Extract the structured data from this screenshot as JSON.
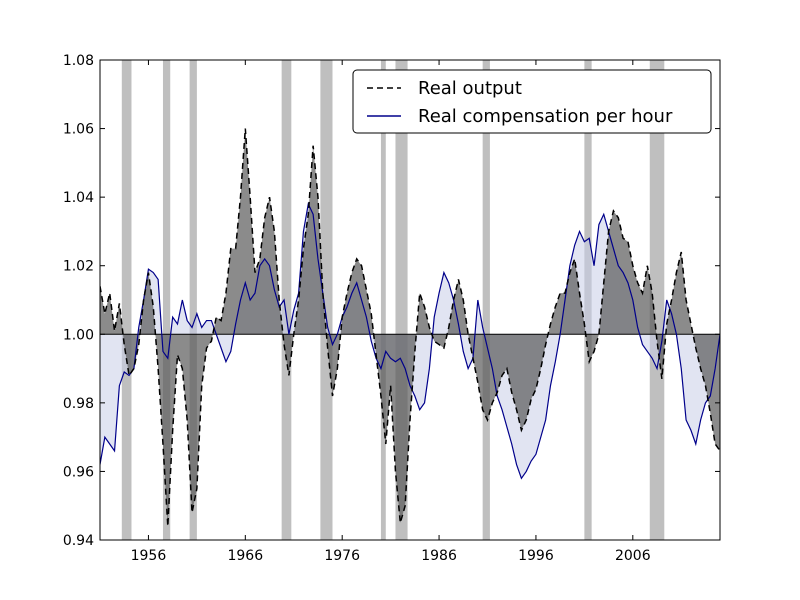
{
  "chart_data": {
    "type": "line",
    "title": "",
    "xlabel": "",
    "ylabel": "",
    "xlim": [
      1951.0,
      2015.0
    ],
    "ylim": [
      0.94,
      1.08
    ],
    "xticks": [
      1956,
      1966,
      1976,
      1986,
      1996,
      2006
    ],
    "xtick_labels": [
      "1956",
      "1966",
      "1976",
      "1986",
      "1996",
      "2006"
    ],
    "yticks": [
      0.94,
      0.96,
      0.98,
      1.0,
      1.02,
      1.04,
      1.06,
      1.08
    ],
    "ytick_labels": [
      "0.94",
      "0.96",
      "0.98",
      "1.00",
      "1.02",
      "1.04",
      "1.06",
      "1.08"
    ],
    "baseline": 1.0,
    "grid": false,
    "legend_position": "top-right",
    "recessions": [
      [
        1953.25,
        1954.25
      ],
      [
        1957.5,
        1958.25
      ],
      [
        1960.25,
        1961.0
      ],
      [
        1969.75,
        1970.75
      ],
      [
        1973.75,
        1975.0
      ],
      [
        1980.0,
        1980.5
      ],
      [
        1981.5,
        1982.75
      ],
      [
        1990.5,
        1991.25
      ],
      [
        2001.0,
        2001.75
      ],
      [
        2007.75,
        2009.25
      ]
    ],
    "colors": {
      "recession": "#bfbfbf",
      "output_line": "#000000",
      "output_fill": "#5a5a5a",
      "compensation_line": "#00008b",
      "compensation_fill": "#c9cde8",
      "baseline": "#000000"
    },
    "series": [
      {
        "name": "Real output",
        "style": "dashed",
        "x": [
          1951,
          1951.5,
          1952,
          1952.5,
          1953,
          1953.5,
          1954,
          1954.5,
          1955,
          1955.5,
          1956,
          1956.5,
          1957,
          1957.5,
          1958,
          1958.5,
          1959,
          1959.5,
          1960,
          1960.5,
          1961,
          1961.5,
          1962,
          1962.5,
          1963,
          1963.5,
          1964,
          1964.5,
          1965,
          1965.5,
          1966,
          1966.5,
          1967,
          1967.5,
          1968,
          1968.5,
          1969,
          1969.5,
          1970,
          1970.5,
          1971,
          1971.5,
          1972,
          1972.5,
          1973,
          1973.5,
          1974,
          1974.5,
          1975,
          1975.5,
          1976,
          1976.5,
          1977,
          1977.5,
          1978,
          1978.5,
          1979,
          1979.5,
          1980,
          1980.5,
          1981,
          1981.5,
          1982,
          1982.5,
          1983,
          1983.5,
          1984,
          1984.5,
          1985,
          1985.5,
          1986,
          1986.5,
          1987,
          1987.5,
          1988,
          1988.5,
          1989,
          1989.5,
          1990,
          1990.5,
          1991,
          1991.5,
          1992,
          1992.5,
          1993,
          1993.5,
          1994,
          1994.5,
          1995,
          1995.5,
          1996,
          1996.5,
          1997,
          1997.5,
          1998,
          1998.5,
          1999,
          1999.5,
          2000,
          2000.5,
          2001,
          2001.5,
          2002,
          2002.5,
          2003,
          2003.5,
          2004,
          2004.5,
          2005,
          2005.5,
          2006,
          2006.5,
          2007,
          2007.5,
          2008,
          2008.5,
          2009,
          2009.5,
          2010,
          2010.5,
          2011,
          2011.5,
          2012,
          2012.5,
          2013,
          2013.5,
          2014,
          2014.5,
          2015
        ],
        "values": [
          1.014,
          1.006,
          1.012,
          1.001,
          1.009,
          0.997,
          0.988,
          0.99,
          0.997,
          1.01,
          1.018,
          1.008,
          0.99,
          0.968,
          0.944,
          0.972,
          0.994,
          0.99,
          0.975,
          0.948,
          0.955,
          0.985,
          0.996,
          0.998,
          1.005,
          1.004,
          1.012,
          1.025,
          1.025,
          1.04,
          1.06,
          1.04,
          1.018,
          1.022,
          1.034,
          1.04,
          1.03,
          1.01,
          0.997,
          0.988,
          1.0,
          1.01,
          1.025,
          1.035,
          1.055,
          1.04,
          1.012,
          0.996,
          0.982,
          0.99,
          1.005,
          1.012,
          1.018,
          1.022,
          1.02,
          1.013,
          1.006,
          0.994,
          0.982,
          0.968,
          0.985,
          0.96,
          0.945,
          0.95,
          0.975,
          0.995,
          1.012,
          1.008,
          1.002,
          0.998,
          0.997,
          0.996,
          1.002,
          1.01,
          1.016,
          1.01,
          1.0,
          0.993,
          0.986,
          0.978,
          0.975,
          0.98,
          0.983,
          0.988,
          0.99,
          0.983,
          0.978,
          0.972,
          0.975,
          0.981,
          0.984,
          0.99,
          0.997,
          1.003,
          1.008,
          1.012,
          1.012,
          1.018,
          1.022,
          1.012,
          1.003,
          0.992,
          0.995,
          1.0,
          1.015,
          1.03,
          1.036,
          1.034,
          1.028,
          1.027,
          1.02,
          1.015,
          1.012,
          1.02,
          1.012,
          0.998,
          0.987,
          1.003,
          1.01,
          1.018,
          1.024,
          1.01,
          1.003,
          0.996,
          0.99,
          0.985,
          0.977,
          0.968,
          0.966
        ]
      },
      {
        "name": "Real compensation per hour",
        "style": "solid",
        "x": [
          1951,
          1951.5,
          1952,
          1952.5,
          1953,
          1953.5,
          1954,
          1954.5,
          1955,
          1955.5,
          1956,
          1956.5,
          1957,
          1957.5,
          1958,
          1958.5,
          1959,
          1959.5,
          1960,
          1960.5,
          1961,
          1961.5,
          1962,
          1962.5,
          1963,
          1963.5,
          1964,
          1964.5,
          1965,
          1965.5,
          1966,
          1966.5,
          1967,
          1967.5,
          1968,
          1968.5,
          1969,
          1969.5,
          1970,
          1970.5,
          1971,
          1971.5,
          1972,
          1972.5,
          1973,
          1973.5,
          1974,
          1974.5,
          1975,
          1975.5,
          1976,
          1976.5,
          1977,
          1977.5,
          1978,
          1978.5,
          1979,
          1979.5,
          1980,
          1980.5,
          1981,
          1981.5,
          1982,
          1982.5,
          1983,
          1983.5,
          1984,
          1984.5,
          1985,
          1985.5,
          1986,
          1986.5,
          1987,
          1987.5,
          1988,
          1988.5,
          1989,
          1989.5,
          1990,
          1990.5,
          1991,
          1991.5,
          1992,
          1992.5,
          1993,
          1993.5,
          1994,
          1994.5,
          1995,
          1995.5,
          1996,
          1996.5,
          1997,
          1997.5,
          1998,
          1998.5,
          1999,
          1999.5,
          2000,
          2000.5,
          2001,
          2001.5,
          2002,
          2002.5,
          2003,
          2003.5,
          2004,
          2004.5,
          2005,
          2005.5,
          2006,
          2006.5,
          2007,
          2007.5,
          2008,
          2008.5,
          2009,
          2009.5,
          2010,
          2010.5,
          2011,
          2011.5,
          2012,
          2012.5,
          2013,
          2013.5,
          2014,
          2014.5,
          2015
        ],
        "values": [
          0.962,
          0.97,
          0.968,
          0.966,
          0.985,
          0.989,
          0.988,
          0.99,
          1.002,
          1.01,
          1.019,
          1.018,
          1.016,
          0.995,
          0.993,
          1.005,
          1.003,
          1.01,
          1.004,
          1.002,
          1.006,
          1.002,
          1.004,
          1.004,
          1.0,
          0.996,
          0.992,
          0.995,
          1.003,
          1.01,
          1.015,
          1.01,
          1.012,
          1.02,
          1.022,
          1.02,
          1.013,
          1.008,
          1.01,
          1.0,
          1.007,
          1.012,
          1.03,
          1.038,
          1.035,
          1.022,
          1.012,
          1.002,
          0.997,
          1.0,
          1.005,
          1.008,
          1.012,
          1.015,
          1.01,
          1.005,
          0.998,
          0.993,
          0.99,
          0.995,
          0.993,
          0.992,
          0.993,
          0.99,
          0.985,
          0.982,
          0.978,
          0.98,
          0.99,
          1.005,
          1.012,
          1.018,
          1.015,
          1.01,
          1.003,
          0.995,
          0.99,
          0.993,
          1.01,
          1.002,
          0.996,
          0.99,
          0.982,
          0.978,
          0.973,
          0.968,
          0.962,
          0.958,
          0.96,
          0.963,
          0.965,
          0.97,
          0.975,
          0.985,
          0.992,
          1.0,
          1.01,
          1.02,
          1.026,
          1.03,
          1.027,
          1.028,
          1.02,
          1.032,
          1.035,
          1.03,
          1.025,
          1.02,
          1.018,
          1.015,
          1.01,
          1.002,
          0.997,
          0.995,
          0.993,
          0.99,
          0.998,
          1.01,
          1.006,
          1.0,
          0.99,
          0.975,
          0.972,
          0.968,
          0.975,
          0.98,
          0.982,
          0.99,
          1.0
        ]
      }
    ]
  }
}
